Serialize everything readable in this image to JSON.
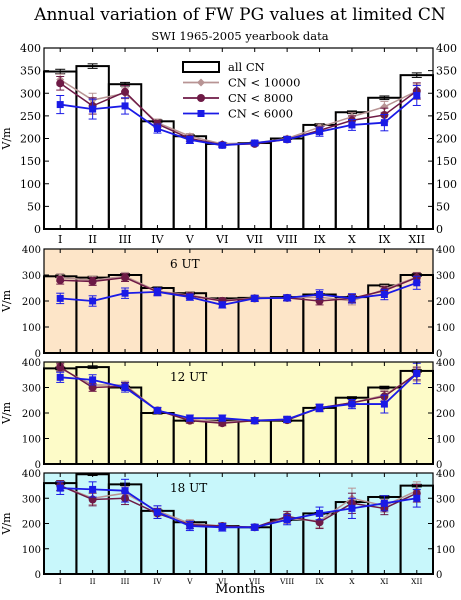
{
  "title": "Annual variation of FW PG values at limited CN",
  "subtitle": "SWI 1965-2005 yearbook data",
  "xlabel": "Months",
  "colors": {
    "allcn": "#000000",
    "cn10000": "#b89494",
    "cn8000": "#6e1a46",
    "cn6000": "#1a1ae6",
    "fill_6ut": "#fde5c8",
    "fill_12ut": "#fdfbc8",
    "fill_18ut": "#c8f7fb"
  },
  "chart_data": [
    {
      "type": "bar",
      "title": "",
      "ylabel": "V/m",
      "ylim": [
        0,
        400
      ],
      "yticks": [
        0,
        50,
        100,
        150,
        200,
        250,
        300,
        350,
        400
      ],
      "categories": [
        "I",
        "II",
        "III",
        "IV",
        "V",
        "VI",
        "VII",
        "VIII",
        "IX",
        "X",
        "IX",
        "XII"
      ],
      "legend": [
        "all CN",
        "CN < 10000",
        "CN < 8000",
        "CN < 6000"
      ],
      "legend_position": "top-center",
      "bars": [
        348,
        360,
        320,
        238,
        205,
        188,
        190,
        200,
        230,
        258,
        290,
        340
      ],
      "bar_err": [
        5,
        5,
        4,
        3,
        3,
        2,
        2,
        2,
        3,
        3,
        4,
        5
      ],
      "series": [
        {
          "name": "CN < 10000",
          "values": [
            330,
            285,
            300,
            235,
            205,
            188,
            190,
            200,
            225,
            248,
            270,
            305
          ],
          "err": [
            12,
            15,
            12,
            8,
            6,
            4,
            4,
            5,
            7,
            9,
            12,
            15
          ]
        },
        {
          "name": "CN < 8000",
          "values": [
            322,
            272,
            303,
            232,
            200,
            186,
            188,
            198,
            218,
            240,
            252,
            305
          ],
          "err": [
            15,
            18,
            14,
            8,
            6,
            4,
            4,
            5,
            8,
            10,
            15,
            18
          ]
        },
        {
          "name": "CN < 6000",
          "values": [
            275,
            265,
            272,
            222,
            197,
            185,
            190,
            198,
            215,
            230,
            235,
            295
          ],
          "err": [
            20,
            22,
            18,
            10,
            8,
            5,
            5,
            6,
            10,
            12,
            18,
            22
          ]
        }
      ]
    },
    {
      "type": "bar",
      "title": "6 UT",
      "ylabel": "V/m",
      "ylim": [
        0,
        400
      ],
      "yticks": [
        0,
        100,
        200,
        300,
        400
      ],
      "categories": [
        "I",
        "II",
        "III",
        "IV",
        "V",
        "VI",
        "VII",
        "VIII",
        "IX",
        "X",
        "XI",
        "XII"
      ],
      "bars": [
        295,
        290,
        300,
        250,
        230,
        210,
        212,
        215,
        225,
        215,
        260,
        300
      ],
      "bar_err": [
        5,
        5,
        5,
        4,
        4,
        3,
        3,
        3,
        4,
        4,
        5,
        5
      ],
      "series": [
        {
          "name": "CN < 10000",
          "values": [
            290,
            280,
            295,
            238,
            222,
            202,
            212,
            212,
            215,
            200,
            245,
            292
          ],
          "err": [
            15,
            15,
            15,
            12,
            10,
            10,
            10,
            10,
            15,
            15,
            15,
            18
          ]
        },
        {
          "name": "CN < 8000",
          "values": [
            280,
            275,
            290,
            235,
            220,
            200,
            210,
            212,
            200,
            210,
            240,
            290
          ],
          "err": [
            15,
            15,
            15,
            12,
            10,
            10,
            10,
            10,
            15,
            15,
            15,
            18
          ]
        },
        {
          "name": "CN < 6000",
          "values": [
            210,
            200,
            230,
            235,
            215,
            185,
            210,
            212,
            225,
            210,
            225,
            270
          ],
          "err": [
            20,
            20,
            20,
            15,
            12,
            12,
            12,
            12,
            18,
            18,
            20,
            25
          ]
        }
      ]
    },
    {
      "type": "bar",
      "title": "12 UT",
      "ylabel": "V/m",
      "ylim": [
        0,
        400
      ],
      "yticks": [
        0,
        100,
        200,
        300,
        400
      ],
      "categories": [
        "I",
        "II",
        "III",
        "IV",
        "V",
        "VI",
        "VII",
        "VIII",
        "IX",
        "X",
        "XI",
        "XII"
      ],
      "bars": [
        375,
        380,
        300,
        200,
        170,
        170,
        170,
        170,
        220,
        260,
        300,
        365
      ],
      "bar_err": [
        5,
        5,
        5,
        4,
        4,
        3,
        3,
        3,
        4,
        4,
        5,
        5
      ],
      "series": [
        {
          "name": "CN < 10000",
          "values": [
            375,
            310,
            310,
            210,
            175,
            165,
            172,
            175,
            220,
            240,
            270,
            350
          ],
          "err": [
            15,
            15,
            15,
            10,
            10,
            10,
            10,
            10,
            12,
            12,
            20,
            25
          ]
        },
        {
          "name": "CN < 8000",
          "values": [
            380,
            300,
            305,
            210,
            170,
            160,
            170,
            172,
            220,
            240,
            265,
            355
          ],
          "err": [
            15,
            15,
            15,
            10,
            10,
            10,
            10,
            10,
            12,
            12,
            20,
            25
          ]
        },
        {
          "name": "CN < 6000",
          "values": [
            340,
            330,
            300,
            210,
            180,
            180,
            170,
            175,
            220,
            235,
            235,
            355
          ],
          "err": [
            20,
            20,
            18,
            12,
            12,
            12,
            12,
            12,
            15,
            18,
            35,
            40
          ]
        }
      ]
    },
    {
      "type": "bar",
      "title": "18 UT",
      "ylabel": "V/m",
      "ylim": [
        0,
        400
      ],
      "yticks": [
        0,
        100,
        200,
        300,
        400
      ],
      "categories": [
        "I",
        "II",
        "III",
        "IV",
        "V",
        "VI",
        "VII",
        "VIII",
        "IX",
        "X",
        "XI",
        "XII"
      ],
      "bars": [
        360,
        395,
        355,
        250,
        205,
        190,
        185,
        215,
        240,
        285,
        305,
        350
      ],
      "bar_err": [
        5,
        5,
        5,
        4,
        4,
        3,
        3,
        3,
        4,
        4,
        5,
        5
      ],
      "series": [
        {
          "name": "CN < 10000",
          "values": [
            350,
            300,
            320,
            250,
            200,
            190,
            185,
            220,
            210,
            300,
            270,
            330
          ],
          "err": [
            20,
            25,
            25,
            20,
            15,
            12,
            10,
            20,
            25,
            40,
            25,
            35
          ]
        },
        {
          "name": "CN < 8000",
          "values": [
            350,
            295,
            300,
            240,
            195,
            190,
            185,
            228,
            205,
            280,
            260,
            320
          ],
          "err": [
            20,
            25,
            25,
            20,
            15,
            12,
            10,
            20,
            25,
            40,
            25,
            35
          ]
        },
        {
          "name": "CN < 6000",
          "values": [
            340,
            335,
            330,
            245,
            190,
            185,
            185,
            215,
            240,
            260,
            280,
            300
          ],
          "err": [
            25,
            30,
            45,
            25,
            18,
            15,
            12,
            20,
            25,
            40,
            30,
            35
          ]
        }
      ]
    }
  ]
}
